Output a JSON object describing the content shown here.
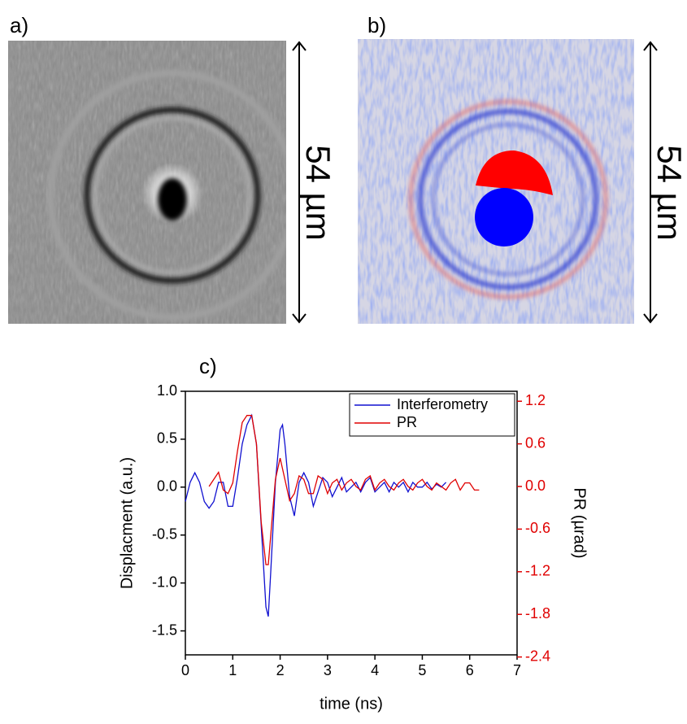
{
  "panels": [
    {
      "label": "a)",
      "scale_label": "54 µm"
    },
    {
      "label": "b)",
      "scale_label": "54 µm"
    }
  ],
  "chart_data": {
    "type": "line",
    "panel_label": "c)",
    "x_label": "time (ns)",
    "y_label": "Displacment (a.u.)",
    "y2_label": "PR (µrad)",
    "xlim": [
      0,
      7
    ],
    "xticks": [
      0,
      1,
      2,
      3,
      4,
      5,
      6,
      7
    ],
    "ylim": [
      -1.75,
      1.0
    ],
    "yticks": [
      {
        "value": 1,
        "label": "1.0"
      },
      0.5,
      {
        "value": 0,
        "label": "0.0"
      },
      -0.5,
      {
        "value": -1,
        "label": "-1.0"
      },
      -1.5
    ],
    "y2lim": [
      -2.37,
      1.34
    ],
    "y2ticks": [
      1.2,
      0.6,
      {
        "value": 0,
        "label": "0.0"
      },
      -0.6,
      -1.2,
      -1.8,
      -2.4
    ],
    "y2_color": "#e00000",
    "legend": "top-right",
    "series": [
      {
        "name": "Interferometry",
        "color": "#1010d0",
        "x": [
          0,
          0.1,
          0.2,
          0.3,
          0.4,
          0.5,
          0.6,
          0.7,
          0.8,
          0.9,
          1.0,
          1.1,
          1.2,
          1.3,
          1.4,
          1.5,
          1.6,
          1.7,
          1.75,
          1.8,
          1.9,
          2.0,
          2.05,
          2.1,
          2.2,
          2.3,
          2.4,
          2.5,
          2.6,
          2.7,
          2.8,
          2.9,
          3.0,
          3.1,
          3.2,
          3.3,
          3.4,
          3.5,
          3.6,
          3.7,
          3.8,
          3.9,
          4.0,
          4.1,
          4.2,
          4.3,
          4.4,
          4.5,
          4.6,
          4.7,
          4.8,
          4.9,
          5.0,
          5.1,
          5.2,
          5.3,
          5.4,
          5.5
        ],
        "values": [
          -0.15,
          0.05,
          0.15,
          0.05,
          -0.15,
          -0.22,
          -0.15,
          0.05,
          0.05,
          -0.2,
          -0.2,
          0.1,
          0.45,
          0.65,
          0.75,
          0.45,
          -0.4,
          -1.25,
          -1.35,
          -0.9,
          0.05,
          0.6,
          0.65,
          0.45,
          -0.1,
          -0.3,
          0.05,
          0.15,
          0.05,
          -0.2,
          -0.05,
          0.1,
          0.05,
          -0.1,
          0.0,
          0.1,
          -0.05,
          0.0,
          0.05,
          -0.05,
          0.05,
          0.1,
          -0.05,
          0.0,
          0.05,
          -0.05,
          0.05,
          0.0,
          0.05,
          -0.05,
          0.05,
          0.0,
          0.0,
          0.05,
          -0.02,
          0.03,
          0.0,
          0.05
        ]
      },
      {
        "name": "PR",
        "color": "#e00000",
        "axis": "y2",
        "x": [
          0.5,
          0.6,
          0.7,
          0.8,
          0.9,
          1.0,
          1.1,
          1.2,
          1.3,
          1.4,
          1.5,
          1.6,
          1.7,
          1.75,
          1.8,
          1.9,
          2.0,
          2.1,
          2.2,
          2.3,
          2.4,
          2.5,
          2.6,
          2.7,
          2.8,
          2.9,
          3.0,
          3.1,
          3.2,
          3.3,
          3.4,
          3.5,
          3.6,
          3.7,
          3.8,
          3.9,
          4.0,
          4.1,
          4.2,
          4.3,
          4.4,
          4.5,
          4.6,
          4.7,
          4.8,
          4.9,
          5.0,
          5.1,
          5.2,
          5.3,
          5.4,
          5.5,
          5.6,
          5.7,
          5.8,
          5.9,
          6.0,
          6.1,
          6.2
        ],
        "values": [
          0.0,
          0.1,
          0.2,
          -0.05,
          -0.1,
          0.05,
          0.5,
          0.9,
          1.0,
          1.0,
          0.6,
          -0.5,
          -1.1,
          -1.1,
          -0.7,
          0.1,
          0.4,
          0.1,
          -0.2,
          -0.1,
          0.15,
          0.1,
          -0.1,
          -0.1,
          0.15,
          0.1,
          -0.1,
          0.05,
          0.1,
          -0.05,
          0.05,
          0.1,
          0.0,
          -0.05,
          0.1,
          0.15,
          -0.05,
          0.05,
          0.1,
          0.0,
          -0.05,
          0.05,
          0.1,
          0.0,
          -0.05,
          0.05,
          0.1,
          0.0,
          -0.05,
          0.05,
          0.0,
          -0.05,
          0.05,
          0.1,
          -0.05,
          0.05,
          0.05,
          -0.05,
          -0.05
        ]
      }
    ]
  }
}
